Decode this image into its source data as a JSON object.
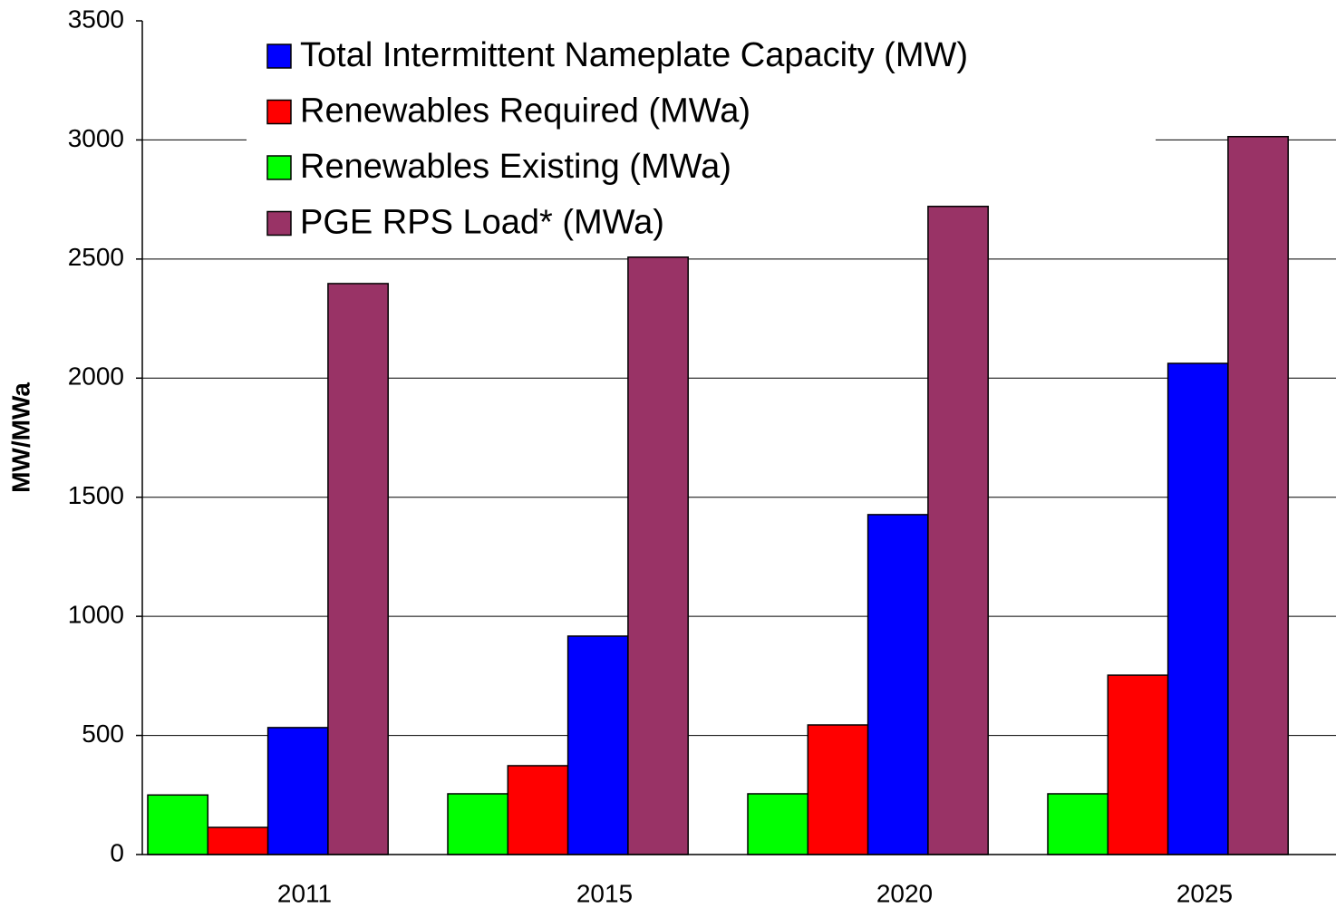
{
  "chart_data": {
    "type": "bar",
    "y_label": "MW/MWa",
    "categories": [
      "2011",
      "2015",
      "2020",
      "2025"
    ],
    "series": [
      {
        "name": "Renewables Existing (MWa)",
        "color": "#00ff00",
        "values": [
          250,
          255,
          255,
          255
        ]
      },
      {
        "name": "Renewables Required (MWa)",
        "color": "#ff0000",
        "values": [
          114,
          373,
          544,
          753
        ]
      },
      {
        "name": "Total Intermittent Nameplate Capacity (MW)",
        "color": "#0000ff",
        "values": [
          533,
          917,
          1427,
          2062
        ]
      },
      {
        "name": "PGE RPS Load* (MWa)",
        "color": "#993366",
        "values": [
          2397,
          2508,
          2721,
          3014
        ]
      }
    ],
    "legend_order": [
      2,
      1,
      0,
      3
    ],
    "ylim": [
      0,
      3500
    ],
    "yticks": [
      0,
      500,
      1000,
      1500,
      2000,
      2500,
      3000,
      3500
    ],
    "grid": true
  }
}
